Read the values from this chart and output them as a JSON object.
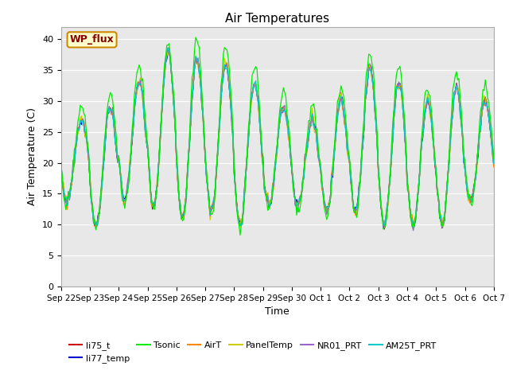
{
  "title": "Air Temperatures",
  "xlabel": "Time",
  "ylabel": "Air Temperature (C)",
  "ylim": [
    0,
    42
  ],
  "yticks": [
    0,
    5,
    10,
    15,
    20,
    25,
    30,
    35,
    40
  ],
  "bg_color": "#e8e8e8",
  "fig_color": "#ffffff",
  "series_colors": {
    "li75_t": "#cc0000",
    "li77_temp": "#0000cc",
    "Tsonic": "#00ee00",
    "AirT": "#ff8800",
    "PanelTemp": "#cccc00",
    "NR01_PRT": "#9966cc",
    "AM25T_PRT": "#00cccc"
  },
  "legend_label": "WP_flux",
  "legend_bg": "#ffffcc",
  "legend_border": "#cc8800",
  "legend_text_color": "#880000",
  "tick_labels": [
    "Sep 22",
    "Sep 23",
    "Sep 24",
    "Sep 25",
    "Sep 26",
    "Sep 27",
    "Sep 28",
    "Sep 29",
    "Sep 30",
    "Oct 1",
    "Oct 2",
    "Oct 3",
    "Oct 4",
    "Oct 5",
    "Oct 6",
    "Oct 7"
  ],
  "tick_positions": [
    0,
    24,
    48,
    72,
    96,
    120,
    144,
    168,
    192,
    216,
    240,
    264,
    288,
    312,
    336,
    360
  ]
}
